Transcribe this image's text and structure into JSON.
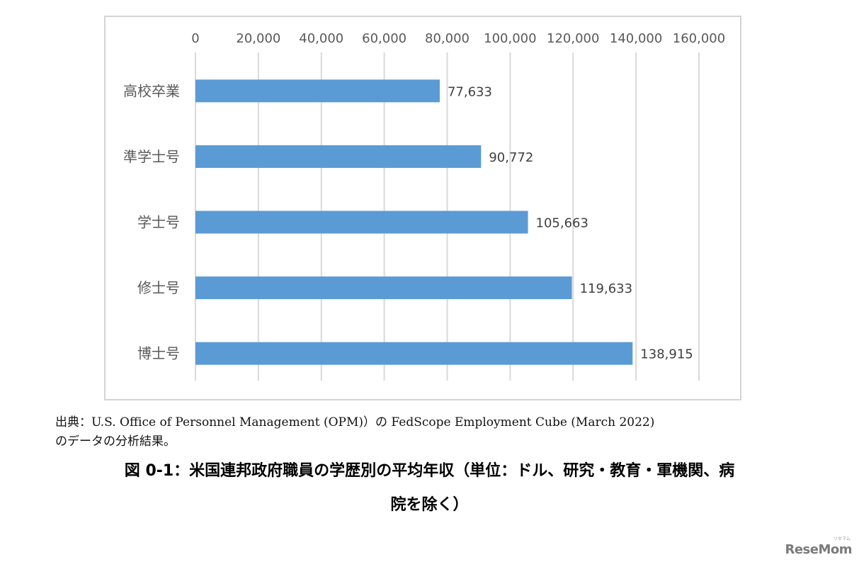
{
  "chart_data": {
    "type": "bar",
    "orientation": "horizontal",
    "categories": [
      "高校卒業",
      "準学士号",
      "学士号",
      "修士号",
      "博士号"
    ],
    "values": [
      77633,
      90772,
      105663,
      119633,
      138915
    ],
    "value_labels": [
      "77,633",
      "90,772",
      "105,663",
      "119,633",
      "138,915"
    ],
    "x_ticks": [
      "0",
      "20,000",
      "40,000",
      "60,000",
      "80,000",
      "100,000",
      "120,000",
      "140,000",
      "160,000"
    ],
    "xlim": [
      0,
      160000
    ],
    "x_axis_position": "top",
    "grid": true,
    "legend": "none",
    "bar_color": "#5b9bd5",
    "grid_color": "#d9d9d9"
  },
  "source": {
    "line1": "出典：U.S. Office of Personnel Management (OPM)）の FedScope Employment Cube (March 2022)",
    "line2": "のデータの分析結果。"
  },
  "caption": {
    "line1": "図 0-1：米国連邦政府職員の学歴別の平均年収（単位：ドル、研究・教育・軍機関、病",
    "line2": "院を除く）"
  },
  "logo": {
    "text": "ReseMom",
    "ruby": "リセマム"
  }
}
